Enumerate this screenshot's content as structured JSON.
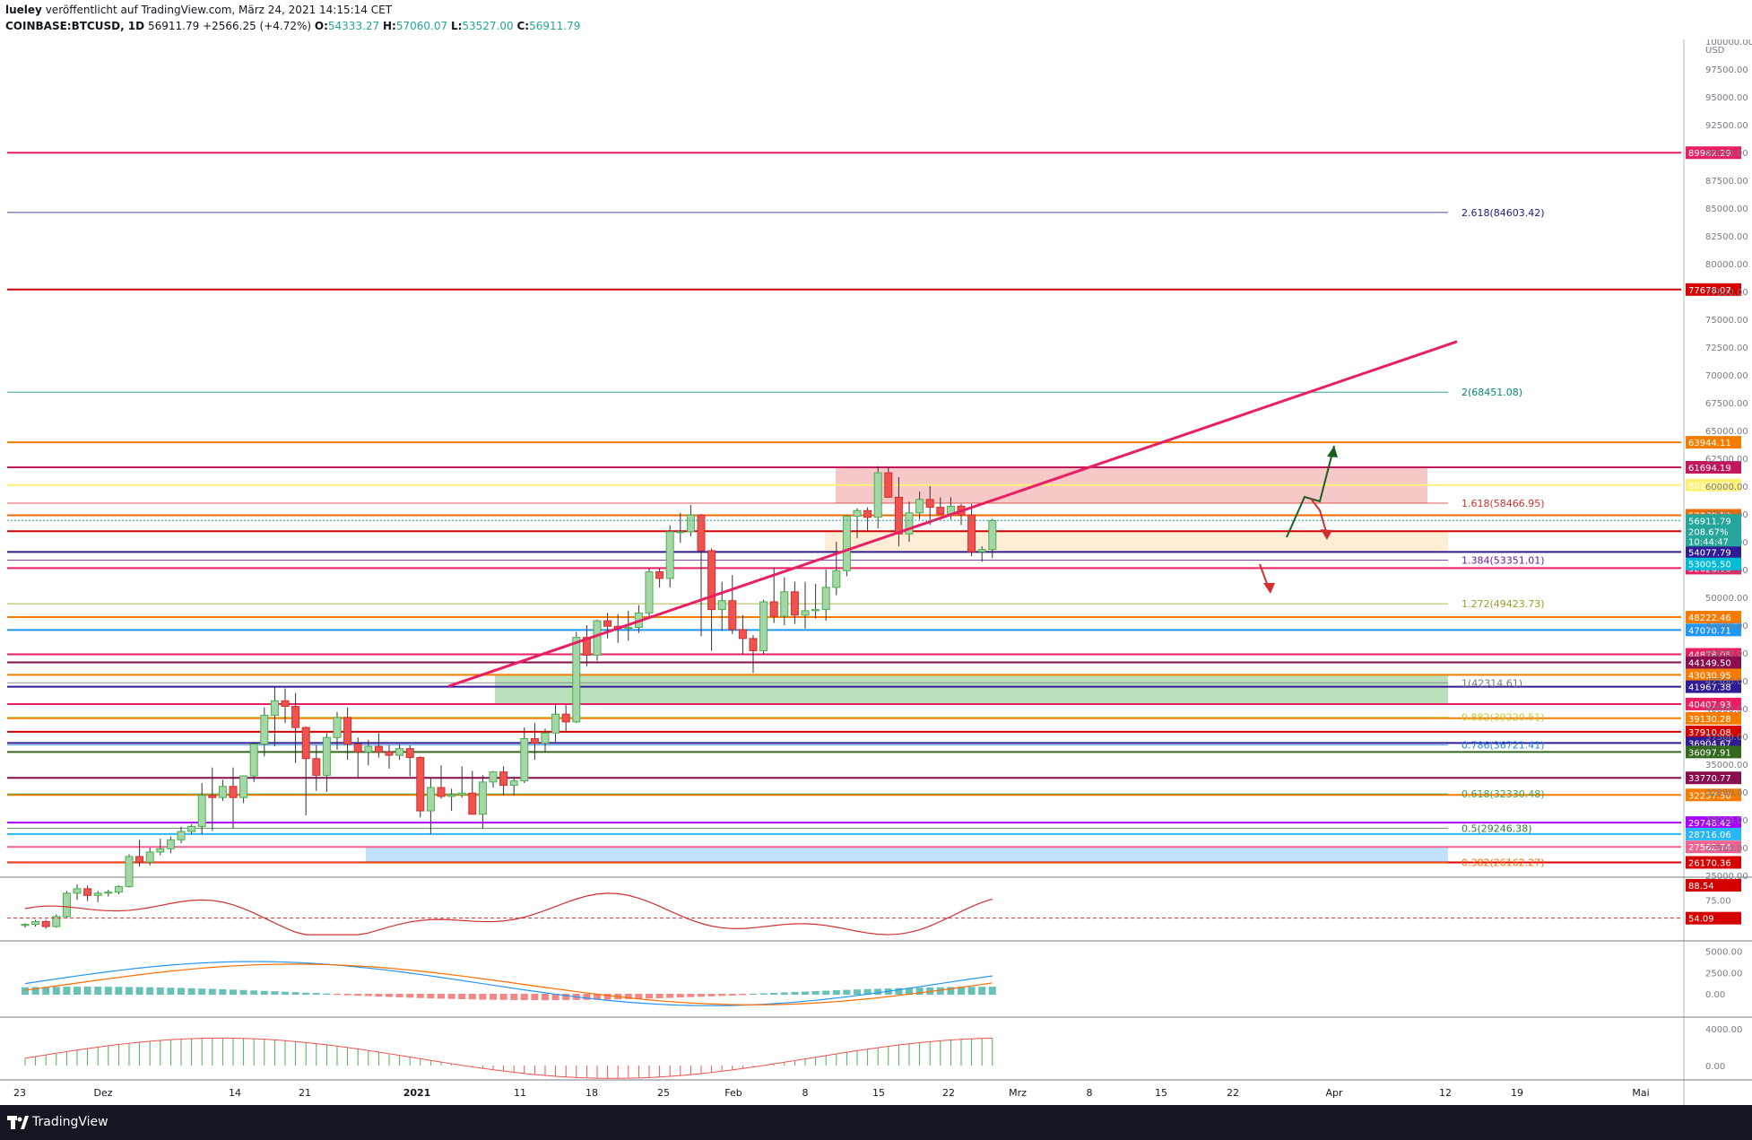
{
  "header": {
    "user": "lueley",
    "published": "veröffentlicht auf TradingView.com, März 24, 2021 14:15:14 CET",
    "symbol": "COINBASE:BTCUSD, 1D",
    "last": "56911.79",
    "change": "+2566.25 (+4.72%)",
    "o_label": "O:",
    "o_value": "54333.27",
    "h_label": "H:",
    "h_value": "57060.07",
    "l_label": "L:",
    "l_value": "53527.00",
    "c_label": "C:",
    "c_value": "56911.79"
  },
  "footer": {
    "brand": "TradingView"
  },
  "chart_data": {
    "type": "candlestick",
    "currency": "USD",
    "price_axis": {
      "min": 25000,
      "max": 100000,
      "ticks": [
        "100000.00",
        "97500.00",
        "95000.00",
        "92500.00",
        "90000.00",
        "87500.00",
        "85000.00",
        "82500.00",
        "80000.00",
        "77500.00",
        "75000.00",
        "72500.00",
        "70000.00",
        "67500.00",
        "65000.00",
        "62500.00",
        "60000.00",
        "57500.00",
        "55000.00",
        "52500.00",
        "50000.00",
        "47500.00",
        "45000.00",
        "42500.00",
        "40000.00",
        "37500.00",
        "35000.00",
        "32500.00",
        "30000.00",
        "27500.00",
        "25000.00"
      ]
    },
    "time_axis": [
      "23",
      "Dez",
      "14",
      "21",
      "2021",
      "11",
      "18",
      "25",
      "Feb",
      "8",
      "15",
      "22",
      "Mrz",
      "8",
      "15",
      "22",
      "Apr",
      "12",
      "19",
      "Mai"
    ],
    "horizontal_levels": [
      {
        "price": 89982.29,
        "label": "89982.29",
        "color": "#e91e63"
      },
      {
        "price": 77678.07,
        "label": "77678.07",
        "color": "#d50000"
      },
      {
        "price": 63944.11,
        "label": "63944.11",
        "color": "#f57c00"
      },
      {
        "price": 61694.19,
        "label": "61694.19",
        "color": "#c2185b"
      },
      {
        "price": 60100.72,
        "label": "60100.72",
        "color": "#fff176"
      },
      {
        "price": 57378.73,
        "label": "57378.73",
        "color": "#ef6c00"
      },
      {
        "price": 55944.96,
        "label": "55944.96",
        "color": "#d50000"
      },
      {
        "price": 54077.79,
        "label": "54077.79",
        "color": "#311b92"
      },
      {
        "price": 52626.98,
        "label": "52626.98",
        "color": "#e91e63"
      },
      {
        "price": 48222.46,
        "label": "48222.46",
        "color": "#f57c00"
      },
      {
        "price": 47070.71,
        "label": "47070.71",
        "color": "#2196f3"
      },
      {
        "price": 44878.05,
        "label": "44878.05",
        "color": "#e91e63"
      },
      {
        "price": 44149.5,
        "label": "44149.50",
        "color": "#880e4f"
      },
      {
        "price": 43030.95,
        "label": "43030.95",
        "color": "#f57c00"
      },
      {
        "price": 41967.38,
        "label": "41967.38",
        "color": "#311b92"
      },
      {
        "price": 40407.93,
        "label": "40407.93",
        "color": "#e91e63"
      },
      {
        "price": 39130.28,
        "label": "39130.28",
        "color": "#f57c00"
      },
      {
        "price": 37910.08,
        "label": "37910.08",
        "color": "#d50000"
      },
      {
        "price": 36904.67,
        "label": "36904.67",
        "color": "#311b92"
      },
      {
        "price": 36097.91,
        "label": "36097.91",
        "color": "#33691e"
      },
      {
        "price": 33770.77,
        "label": "33770.77",
        "color": "#880e4f"
      },
      {
        "price": 32237.5,
        "label": "32237.50",
        "color": "#f57c00"
      },
      {
        "price": 29748.42,
        "label": "29748.42",
        "color": "#aa00ff"
      },
      {
        "price": 28716.06,
        "label": "28716.06",
        "color": "#29b6f6"
      },
      {
        "price": 27562.74,
        "label": "27562.74",
        "color": "#f06292"
      },
      {
        "price": 26170.36,
        "label": "26170.36",
        "color": "#d50000"
      }
    ],
    "current_price": {
      "price": 56911.79,
      "label": "56911.79",
      "sub1": "208.67%",
      "sub2": "10:44:47",
      "color": "#26a69a"
    },
    "last_close_label": {
      "price": 53005.5,
      "label": "53005.50",
      "color": "#00bcd4"
    },
    "fib_levels": [
      {
        "price": 84603.42,
        "label": "2.618(84603.42)",
        "color": "#1a237e"
      },
      {
        "price": 68451.08,
        "label": "2(68451.08)",
        "color": "#00897b"
      },
      {
        "price": 58466.95,
        "label": "1.618(58466.95)",
        "color": "#d32f2f"
      },
      {
        "price": 53351.01,
        "label": "1.384(53351.01)",
        "color": "#6a1b9a"
      },
      {
        "price": 49423.73,
        "label": "1.272(49423.73)",
        "color": "#9e9d24"
      },
      {
        "price": 42314.61,
        "label": "1(42314.61)",
        "color": "#757575"
      },
      {
        "price": 39220.51,
        "label": "0.882(39220.51)",
        "color": "#c0ca33"
      },
      {
        "price": 36721.41,
        "label": "0.786(36721.41)",
        "color": "#1e88e5"
      },
      {
        "price": 32330.48,
        "label": "0.618(32330.48)",
        "color": "#43a047"
      },
      {
        "price": 29246.38,
        "label": "0.5(29246.38)",
        "color": "#2e7d32"
      },
      {
        "price": 26162.27,
        "label": "0.382(26162.27)",
        "color": "#ff6f00"
      }
    ],
    "candles": [
      [
        20500,
        20700,
        20300,
        20600
      ],
      [
        20600,
        21000,
        20400,
        20850
      ],
      [
        20850,
        21000,
        20200,
        20400
      ],
      [
        20400,
        21500,
        20300,
        21300
      ],
      [
        21300,
        23600,
        21200,
        23400
      ],
      [
        23400,
        24200,
        22800,
        23800
      ],
      [
        23800,
        24100,
        22700,
        23200
      ],
      [
        23200,
        23600,
        22600,
        23400
      ],
      [
        23400,
        23700,
        23100,
        23500
      ],
      [
        23500,
        24100,
        23300,
        24000
      ],
      [
        24000,
        26900,
        23900,
        26700
      ],
      [
        26700,
        28200,
        25800,
        26200
      ],
      [
        26200,
        27500,
        25900,
        27100
      ],
      [
        27100,
        28300,
        26800,
        27400
      ],
      [
        27400,
        28500,
        27000,
        28200
      ],
      [
        28200,
        29400,
        27900,
        28950
      ],
      [
        28950,
        29600,
        28700,
        29400
      ],
      [
        29400,
        33300,
        28700,
        32200
      ],
      [
        32200,
        34700,
        29000,
        32000
      ],
      [
        32000,
        33600,
        31700,
        33000
      ],
      [
        33000,
        34700,
        29200,
        32000
      ],
      [
        32000,
        34000,
        31500,
        33950
      ],
      [
        33950,
        37000,
        33400,
        36800
      ],
      [
        36800,
        40100,
        35700,
        39400
      ],
      [
        39400,
        41900,
        36600,
        40700
      ],
      [
        40700,
        41800,
        38700,
        40200
      ],
      [
        40200,
        41400,
        35100,
        38300
      ],
      [
        38300,
        38400,
        30400,
        35500
      ],
      [
        35500,
        36700,
        32600,
        34000
      ],
      [
        34000,
        37800,
        32500,
        37400
      ],
      [
        37400,
        39700,
        36300,
        39200
      ],
      [
        39200,
        40100,
        35400,
        36800
      ],
      [
        36800,
        37400,
        33800,
        36100
      ],
      [
        36100,
        37200,
        34900,
        36600
      ],
      [
        36600,
        37800,
        35600,
        36100
      ],
      [
        36100,
        36700,
        34600,
        35800
      ],
      [
        35800,
        36800,
        35400,
        36400
      ],
      [
        36400,
        36700,
        33900,
        35600
      ],
      [
        35600,
        35700,
        30200,
        30800
      ],
      [
        30800,
        33800,
        28700,
        32900
      ],
      [
        32900,
        34900,
        31900,
        32100
      ],
      [
        32100,
        32800,
        30800,
        32250
      ],
      [
        32250,
        34800,
        32000,
        32400
      ],
      [
        32400,
        34400,
        30800,
        30500
      ],
      [
        30500,
        34000,
        29200,
        33400
      ],
      [
        33400,
        34400,
        32900,
        34300
      ],
      [
        34300,
        34800,
        32200,
        33100
      ],
      [
        33100,
        33900,
        32200,
        33500
      ],
      [
        33500,
        38300,
        33300,
        37300
      ],
      [
        37300,
        38700,
        35400,
        36900
      ],
      [
        36900,
        38200,
        36100,
        37800
      ],
      [
        37800,
        40400,
        37000,
        39500
      ],
      [
        39500,
        40300,
        38000,
        38800
      ],
      [
        38800,
        46900,
        38700,
        46400
      ],
      [
        46400,
        47500,
        43800,
        44800
      ],
      [
        44800,
        48000,
        44300,
        47900
      ],
      [
        47900,
        48600,
        46300,
        47400
      ],
      [
        47400,
        48500,
        45900,
        47200
      ],
      [
        47200,
        48800,
        46100,
        47300
      ],
      [
        47300,
        49300,
        46800,
        48600
      ],
      [
        48600,
        52600,
        48300,
        52300
      ],
      [
        52300,
        52600,
        50900,
        51700
      ],
      [
        51700,
        56500,
        50900,
        55900
      ],
      [
        55900,
        57600,
        54900,
        55900
      ],
      [
        55900,
        58300,
        55500,
        57400
      ],
      [
        57400,
        57500,
        46500,
        54200
      ],
      [
        54200,
        54400,
        45200,
        48900
      ],
      [
        48900,
        51400,
        47000,
        49700
      ],
      [
        49700,
        52000,
        46700,
        47100
      ],
      [
        47100,
        48400,
        44900,
        46300
      ],
      [
        46300,
        46600,
        43200,
        45200
      ],
      [
        45200,
        49800,
        44900,
        49600
      ],
      [
        49600,
        52700,
        47700,
        48300
      ],
      [
        48300,
        51800,
        47500,
        50500
      ],
      [
        50500,
        51400,
        47600,
        48400
      ],
      [
        48400,
        51400,
        47200,
        48800
      ],
      [
        48800,
        51200,
        48100,
        48900
      ],
      [
        48900,
        52500,
        47900,
        50900
      ],
      [
        50900,
        55000,
        50200,
        52400
      ],
      [
        52400,
        57400,
        51900,
        57300
      ],
      [
        57300,
        58000,
        55300,
        57800
      ],
      [
        57800,
        58100,
        56000,
        57200
      ],
      [
        57200,
        61800,
        56200,
        61200
      ],
      [
        61200,
        61700,
        59000,
        59000
      ],
      [
        59000,
        60800,
        54600,
        55700
      ],
      [
        55700,
        58600,
        55000,
        57600
      ],
      [
        57600,
        59500,
        57000,
        58800
      ],
      [
        58800,
        60000,
        56500,
        58100
      ],
      [
        58100,
        59000,
        57400,
        57500
      ],
      [
        57500,
        59000,
        57000,
        58200
      ],
      [
        58200,
        58400,
        56500,
        57400
      ],
      [
        57400,
        58400,
        53700,
        54100
      ],
      [
        54100,
        54600,
        53200,
        54300
      ],
      [
        54300,
        57060,
        53527,
        56911.79
      ]
    ],
    "pink_zone": {
      "from": 58466.95,
      "to": 61694.19
    },
    "orange_zone": {
      "from": 54077.79,
      "to": 55944.96
    },
    "green_zone": {
      "from": 40407.93,
      "to": 43030.95
    },
    "blue_zone": {
      "from": 26170.36,
      "to": 27562.74
    },
    "trendline_label": "",
    "rsi": {
      "ticks": [
        "75.00"
      ],
      "value_label": "88.54",
      "level_label": "54.09"
    },
    "macd1": {
      "ticks": [
        "5000.00",
        "2500.00",
        "0.00"
      ]
    },
    "macd2": {
      "ticks": [
        "4000.00",
        "0.00"
      ]
    }
  }
}
